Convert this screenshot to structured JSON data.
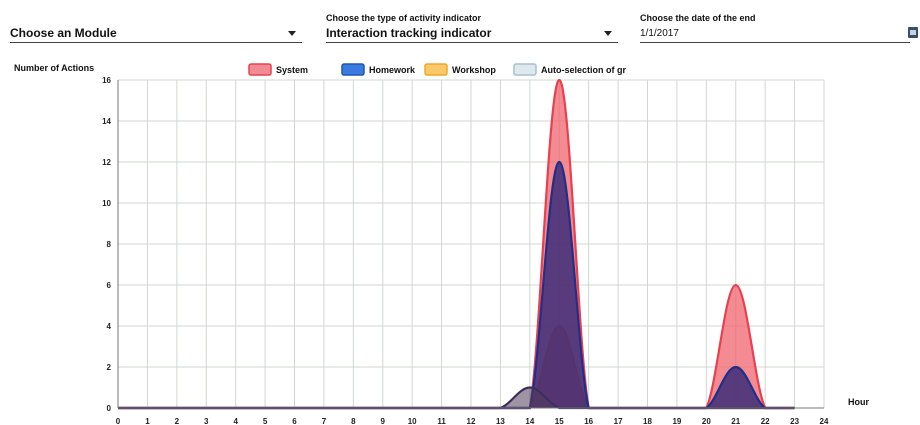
{
  "controls": {
    "module": {
      "label": "",
      "value": "Choose an Module"
    },
    "indicator": {
      "label": "Choose the type of activity indicator",
      "value": "Interaction tracking indicator"
    },
    "date": {
      "label": "Choose the date of the end",
      "value": "1/1/2017"
    }
  },
  "icons": {
    "dropdown": "chevron-down-icon",
    "calendar": "calendar-icon"
  },
  "chart_data": {
    "type": "area",
    "ylabel": "Number of Actions",
    "xlabel": "Hour",
    "xlim": [
      0,
      24
    ],
    "ylim": [
      0,
      16
    ],
    "x_ticks": [
      0,
      1,
      2,
      3,
      4,
      5,
      6,
      7,
      8,
      9,
      10,
      11,
      12,
      13,
      14,
      15,
      16,
      17,
      18,
      19,
      20,
      21,
      22,
      23,
      24
    ],
    "y_ticks": [
      0,
      2,
      4,
      6,
      8,
      10,
      12,
      14,
      16
    ],
    "grid": true,
    "legend_position": "top-center",
    "legend": [
      {
        "name": "System",
        "color": "#e8404f",
        "fill": "#f08b93"
      },
      {
        "name": "Homework",
        "color": "#1e56b8",
        "fill": "#3a7be0"
      },
      {
        "name": "Workshop",
        "color": "#f5a623",
        "fill": "#f8c86b"
      },
      {
        "name": "Auto-selection of gr",
        "color": "#a9bfcf",
        "fill": "#dde8ef"
      }
    ],
    "series": [
      {
        "name": "System",
        "color": "#e8404f",
        "fill": "rgba(240,100,110,0.75)",
        "values": [
          0,
          0,
          0,
          0,
          0,
          0,
          0,
          0,
          0,
          0,
          0,
          0,
          0,
          0,
          0,
          16,
          0,
          0,
          0,
          0,
          0,
          6,
          0,
          0
        ]
      },
      {
        "name": "Workshop",
        "color": "#e0602a",
        "fill": "rgba(200,60,40,0.55)",
        "values": [
          0,
          0,
          0,
          0,
          0,
          0,
          0,
          0,
          0,
          0,
          0,
          0,
          0,
          0,
          0,
          4,
          0,
          0,
          0,
          0,
          0,
          0,
          0,
          0
        ]
      },
      {
        "name": "Homework",
        "color": "#1f2f8a",
        "fill": "rgba(60,45,120,0.85)",
        "values": [
          0,
          0,
          0,
          0,
          0,
          0,
          0,
          0,
          0,
          0,
          0,
          0,
          0,
          0,
          0,
          12,
          0,
          0,
          0,
          0,
          0,
          2,
          0,
          0
        ]
      },
      {
        "name": "Auto-selection of gr",
        "color": "#3a3060",
        "fill": "rgba(80,60,90,0.55)",
        "values": [
          0,
          0,
          0,
          0,
          0,
          0,
          0,
          0,
          0,
          0,
          0,
          0,
          0,
          0,
          1,
          0,
          0,
          0,
          0,
          0,
          0,
          0,
          0,
          0
        ]
      }
    ]
  }
}
